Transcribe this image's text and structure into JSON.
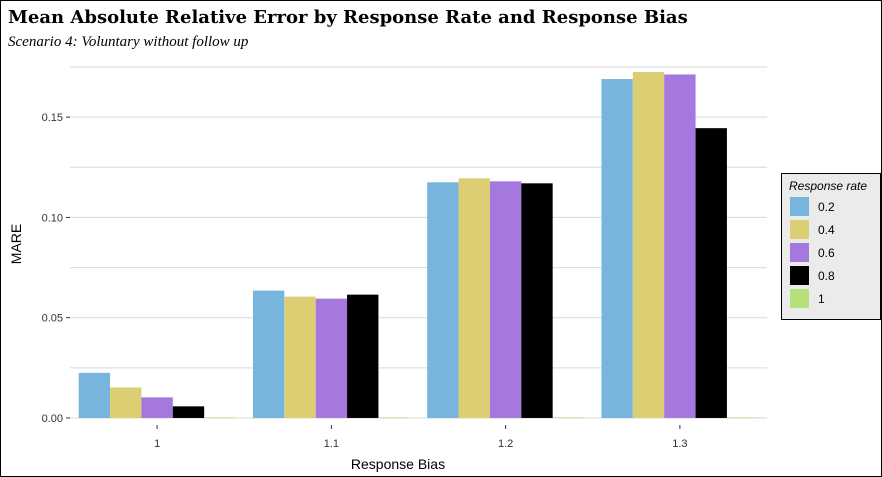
{
  "chart_data": {
    "type": "bar",
    "title": "Mean Absolute Relative Error by Response Rate and Response Bias",
    "subtitle": "Scenario 4: Voluntary without follow up",
    "xlabel": "Response Bias",
    "ylabel": "MARE",
    "categories": [
      "1",
      "1.1",
      "1.2",
      "1.3"
    ],
    "ylim": [
      -0.0035,
      0.176
    ],
    "yticks": [
      0.0,
      0.05,
      0.1,
      0.15
    ],
    "ytick_labels": [
      "0.00",
      "0.05",
      "0.10",
      "0.15"
    ],
    "grid": true,
    "legend": {
      "title": "Response rate",
      "position": "right"
    },
    "series": [
      {
        "name": "0.2",
        "color": "#77b5dd",
        "values": [
          0.0225,
          0.0635,
          0.1175,
          0.169
        ]
      },
      {
        "name": "0.4",
        "color": "#dccf73",
        "values": [
          0.0152,
          0.0605,
          0.1195,
          0.1725
        ]
      },
      {
        "name": "0.6",
        "color": "#a578de",
        "values": [
          0.0103,
          0.0595,
          0.118,
          0.1713
        ]
      },
      {
        "name": "0.8",
        "color": "#000000",
        "values": [
          0.0058,
          0.0615,
          0.117,
          0.1445
        ]
      },
      {
        "name": "1",
        "color": "#b5e07a",
        "values": [
          0.0,
          0.0,
          0.0,
          0.0
        ]
      }
    ]
  }
}
